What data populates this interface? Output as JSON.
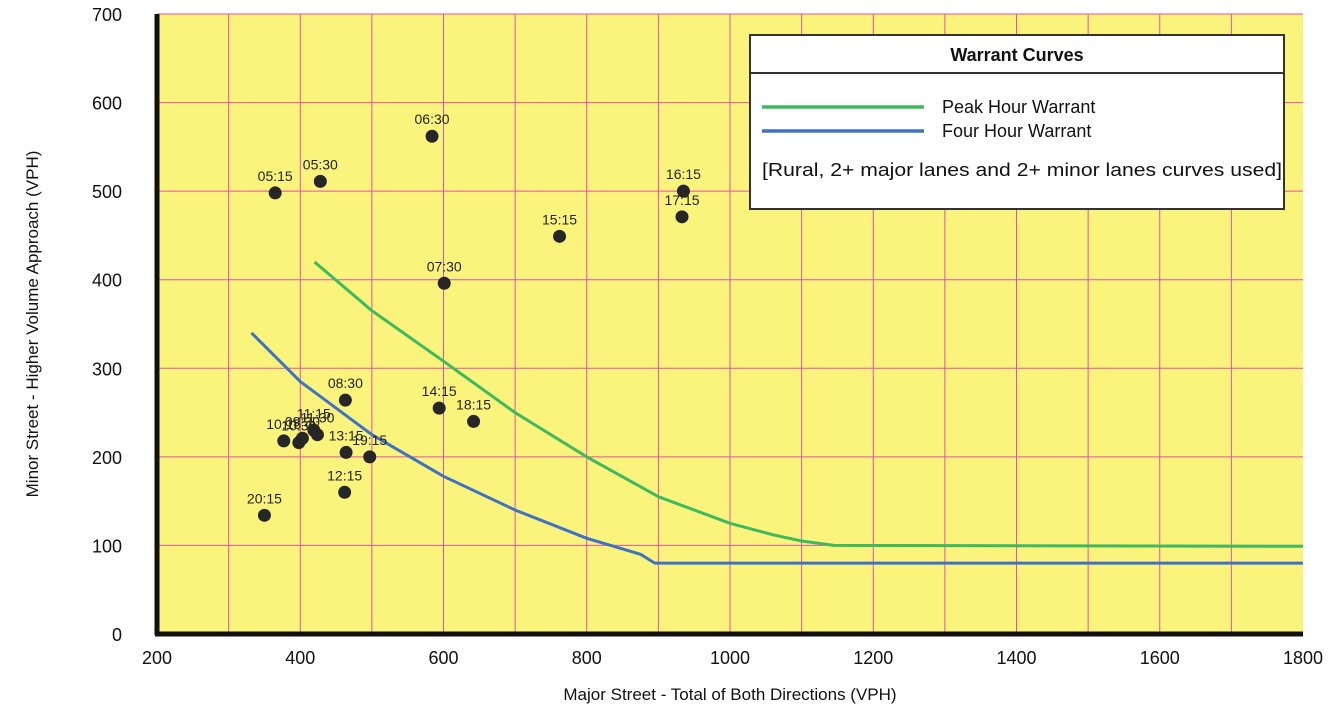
{
  "chart_data": {
    "type": "scatter",
    "xlabel": "Major Street - Total of Both Directions (VPH)",
    "ylabel": "Minor Street - Higher Volume Approach (VPH)",
    "xlim": [
      200,
      1800
    ],
    "ylim": [
      0,
      700
    ],
    "x_ticks": [
      200,
      400,
      600,
      800,
      1000,
      1200,
      1400,
      1600,
      1800
    ],
    "y_ticks": [
      0,
      100,
      200,
      300,
      400,
      500,
      600,
      700
    ],
    "grid": true,
    "colors": {
      "plot_background": "#fbf47c",
      "grid": "#e64fa8",
      "peak_curve": "#3dba5d",
      "four_hour_curve": "#3e72c6",
      "points": "#262626"
    },
    "legend": {
      "title": "Warrant Curves",
      "placement": "top-right",
      "entries": [
        "Peak Hour Warrant",
        "Four Hour Warrant"
      ],
      "note": "[Rural,  2+ major lanes and 2+ minor lanes curves used]"
    },
    "series": [
      {
        "name": "Peak Hour Warrant",
        "type": "line",
        "x": [
          420,
          500,
          600,
          700,
          800,
          900,
          1000,
          1060,
          1100,
          1145,
          1800
        ],
        "y": [
          420,
          365,
          308,
          250,
          200,
          155,
          125,
          112,
          105,
          100,
          99
        ]
      },
      {
        "name": "Four Hour Warrant",
        "type": "line",
        "x": [
          332,
          400,
          500,
          600,
          700,
          800,
          875,
          895,
          1800
        ],
        "y": [
          340,
          285,
          225,
          178,
          140,
          108,
          90,
          80,
          80
        ]
      }
    ],
    "points": [
      {
        "label": "05:15",
        "x": 365,
        "y": 498
      },
      {
        "label": "05:30",
        "x": 428,
        "y": 511
      },
      {
        "label": "06:30",
        "x": 584,
        "y": 562
      },
      {
        "label": "16:15",
        "x": 935,
        "y": 500
      },
      {
        "label": "17:15",
        "x": 933,
        "y": 471
      },
      {
        "label": "15:15",
        "x": 762,
        "y": 449
      },
      {
        "label": "07:30",
        "x": 601,
        "y": 396
      },
      {
        "label": "08:30",
        "x": 463,
        "y": 264
      },
      {
        "label": "14:15",
        "x": 594,
        "y": 255
      },
      {
        "label": "18:15",
        "x": 642,
        "y": 240
      },
      {
        "label": "10:15",
        "x": 377,
        "y": 218
      },
      {
        "label": "10:30",
        "x": 398,
        "y": 216
      },
      {
        "label": "09:30",
        "x": 403,
        "y": 221
      },
      {
        "label": "11:15",
        "x": 419,
        "y": 230
      },
      {
        "label": "11:30",
        "x": 424,
        "y": 225
      },
      {
        "label": "13:15",
        "x": 464,
        "y": 205
      },
      {
        "label": "19:15",
        "x": 497,
        "y": 200
      },
      {
        "label": "12:15",
        "x": 462,
        "y": 160
      },
      {
        "label": "20:15",
        "x": 350,
        "y": 134
      }
    ]
  }
}
